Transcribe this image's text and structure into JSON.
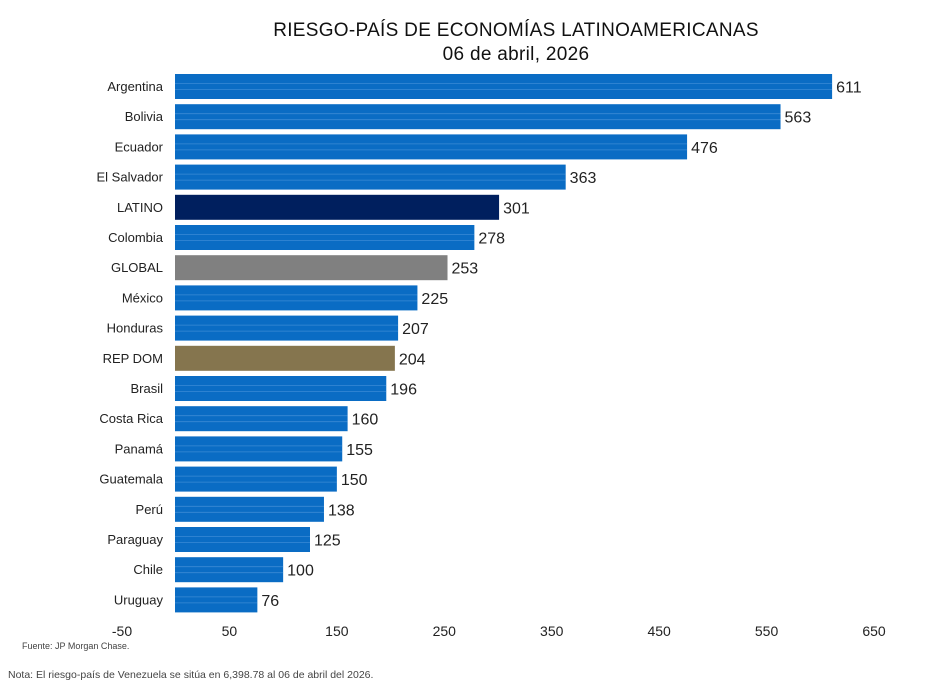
{
  "colors": {
    "country": "#0A6CC4",
    "latino": "#001F5E",
    "global": "#808080",
    "repdom": "#85754E",
    "stripe": "#5A9EE0"
  },
  "source_note": "Fuente: JP Morgan Chase.",
  "footnote": "Nota: El riesgo-país de Venezuela se sitúa en 6,398.78 al 06 de abril del 2026.",
  "chart_data": {
    "type": "bar",
    "orientation": "horizontal",
    "title": "RIESGO-PAÍS DE ECONOMÍAS LATINOAMERICANAS",
    "subtitle": "06 de abril, 2026",
    "categories": [
      "Argentina",
      "Bolivia",
      "Ecuador",
      "El Salvador",
      "LATINO",
      "Colombia",
      "GLOBAL",
      "México",
      "Honduras",
      "REP DOM",
      "Brasil",
      "Costa Rica",
      "Panamá",
      "Guatemala",
      "Perú",
      "Paraguay",
      "Chile",
      "Uruguay"
    ],
    "values": [
      611,
      563,
      476,
      363,
      301,
      278,
      253,
      225,
      207,
      204,
      196,
      160,
      155,
      150,
      138,
      125,
      100,
      76
    ],
    "bar_colors": [
      "country",
      "country",
      "country",
      "country",
      "latino",
      "country",
      "global",
      "country",
      "country",
      "repdom",
      "country",
      "country",
      "country",
      "country",
      "country",
      "country",
      "country",
      "country"
    ],
    "xlim": [
      -50,
      650
    ],
    "xticks": [
      -50,
      50,
      150,
      250,
      350,
      450,
      550,
      650
    ],
    "grid": false,
    "legend": "none"
  }
}
